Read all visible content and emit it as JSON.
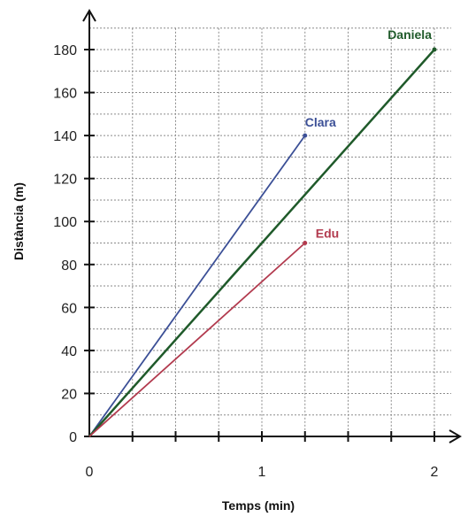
{
  "chart_data": {
    "type": "line",
    "xlabel": "Temps (min)",
    "ylabel": "Distància (m)",
    "xlim": [
      0,
      2.1
    ],
    "ylim": [
      0,
      190
    ],
    "x_ticks": [
      0,
      1,
      2
    ],
    "x_tick_labels": [
      "0",
      "1",
      "2"
    ],
    "y_ticks": [
      0,
      20,
      40,
      60,
      80,
      100,
      120,
      140,
      160,
      180
    ],
    "y_tick_labels": [
      "0",
      "20",
      "40",
      "60",
      "80",
      "100",
      "120",
      "140",
      "160",
      "180"
    ],
    "x_minor_step": 0.25,
    "y_minor_step": 10,
    "grid": true,
    "series": [
      {
        "name": "Clara",
        "x": [
          0,
          1.25
        ],
        "y": [
          0,
          140
        ],
        "color": "#3b4f96"
      },
      {
        "name": "Daniela",
        "x": [
          0,
          2
        ],
        "y": [
          0,
          180
        ],
        "color": "#1f5a2a"
      },
      {
        "name": "Edu",
        "x": [
          0,
          1.25
        ],
        "y": [
          0,
          90
        ],
        "color": "#b23a4e"
      }
    ]
  }
}
